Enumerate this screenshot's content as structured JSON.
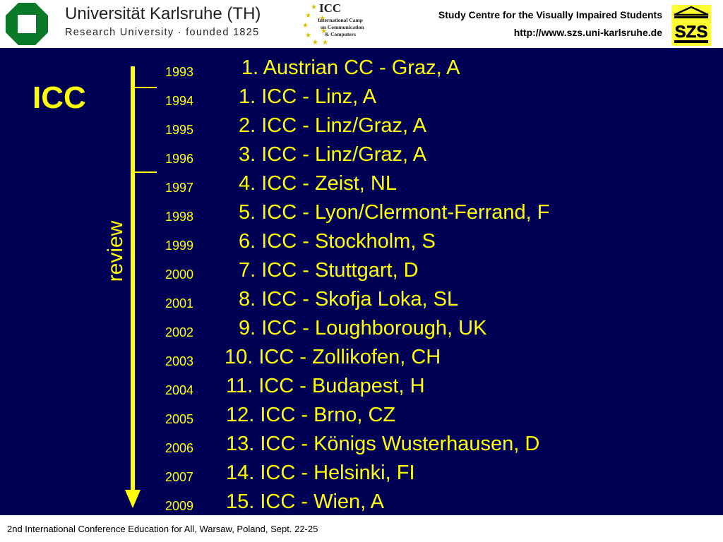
{
  "header": {
    "university_name": "Universität Karlsruhe (TH)",
    "university_sub": "Research University  ·  founded 1825",
    "icc_logo": {
      "title": "ICC",
      "lines": [
        "International Camp",
        "on Communication",
        "& Computers"
      ]
    },
    "centre_name": "Study Centre for the Visually Impaired Students",
    "centre_url": "http://www.szs.uni-karlsruhe.de",
    "szs_logo_text": "SZS"
  },
  "slide": {
    "title": "ICC",
    "side_label": "review",
    "accent_color": "#ffff00",
    "background_color": "#000055",
    "events": [
      {
        "year": "1993",
        "label": "1. Austrian CC - Graz, A"
      },
      {
        "year": "1994",
        "label": "1. ICC - Linz, A"
      },
      {
        "year": "1995",
        "label": "2. ICC - Linz/Graz, A"
      },
      {
        "year": "1996",
        "label": "3. ICC - Linz/Graz, A"
      },
      {
        "year": "1997",
        "label": "4. ICC - Zeist, NL"
      },
      {
        "year": "1998",
        "label": "5. ICC - Lyon/Clermont-Ferrand, F"
      },
      {
        "year": "1999",
        "label": "6. ICC - Stockholm, S"
      },
      {
        "year": "2000",
        "label": "7. ICC - Stuttgart, D"
      },
      {
        "year": "2001",
        "label": "8. ICC - Skofja Loka, SL"
      },
      {
        "year": "2002",
        "label": "9. ICC - Loughborough, UK"
      },
      {
        "year": "2003",
        "label": "10. ICC - Zollikofen, CH"
      },
      {
        "year": "2004",
        "label": "11. ICC - Budapest, H"
      },
      {
        "year": "2005",
        "label": "12. ICC - Brno, CZ"
      },
      {
        "year": "2006",
        "label": "13. ICC - Königs Wusterhausen, D"
      },
      {
        "year": "2007",
        "label": "14. ICC - Helsinki, FI"
      },
      {
        "year": "2009",
        "label": "15. ICC - Wien, A"
      }
    ]
  },
  "footer": {
    "text": "2nd International Conference Education for All, Warsaw, Poland, Sept. 22-25"
  }
}
